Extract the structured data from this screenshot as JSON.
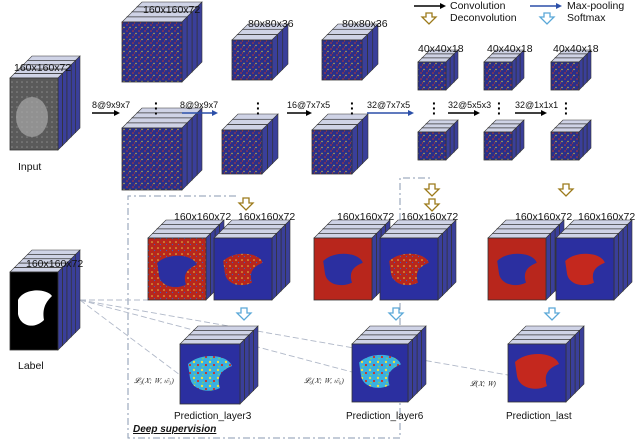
{
  "legend": {
    "convolution": "Convolution",
    "max_pooling": "Max-pooling",
    "deconvolution": "Deconvolution",
    "softmax": "Softmax"
  },
  "input": {
    "size": "160x160x72",
    "caption": "Input"
  },
  "label": {
    "size": "160x160x72",
    "caption": "Label"
  },
  "encoder_sizes": [
    "160x160x72",
    "80x80x36",
    "80x80x36",
    "40x40x18",
    "40x40x18",
    "40x40x18"
  ],
  "layer_ops": [
    "8@9x9x7",
    "8@9x9x7",
    "16@7x7x5",
    "32@7x7x5",
    "32@5x5x3",
    "32@1x1x1"
  ],
  "decoder_sizes": [
    "160x160x72",
    "160x160x72",
    "160x160x72",
    "160x160x72",
    "160x160x72",
    "160x160x72"
  ],
  "predictions": [
    "Prediction_layer3",
    "Prediction_layer6",
    "Prediction_last"
  ],
  "loss_labels": [
    "𝓛₃(𝑋; 𝑊, 𝑤̂₃)",
    "𝓛₆(𝑋; 𝑊, 𝑤̂₆)",
    "𝓛(𝑋; 𝑊)"
  ],
  "deep_supervision": "Deep supervision",
  "colors": {
    "convolution_arrow": "#000000",
    "maxpool_arrow": "#2b4fa8",
    "deconv_arrow": "#9c7a1a",
    "softmax_arrow": "#5aa8d8",
    "feature_map": "#2a2f8a",
    "feature_noise": "#c43a2a",
    "liver_bg": "#2b2fa0",
    "liver_red": "#c4281e",
    "dashed_box": "#8a9ab0"
  }
}
